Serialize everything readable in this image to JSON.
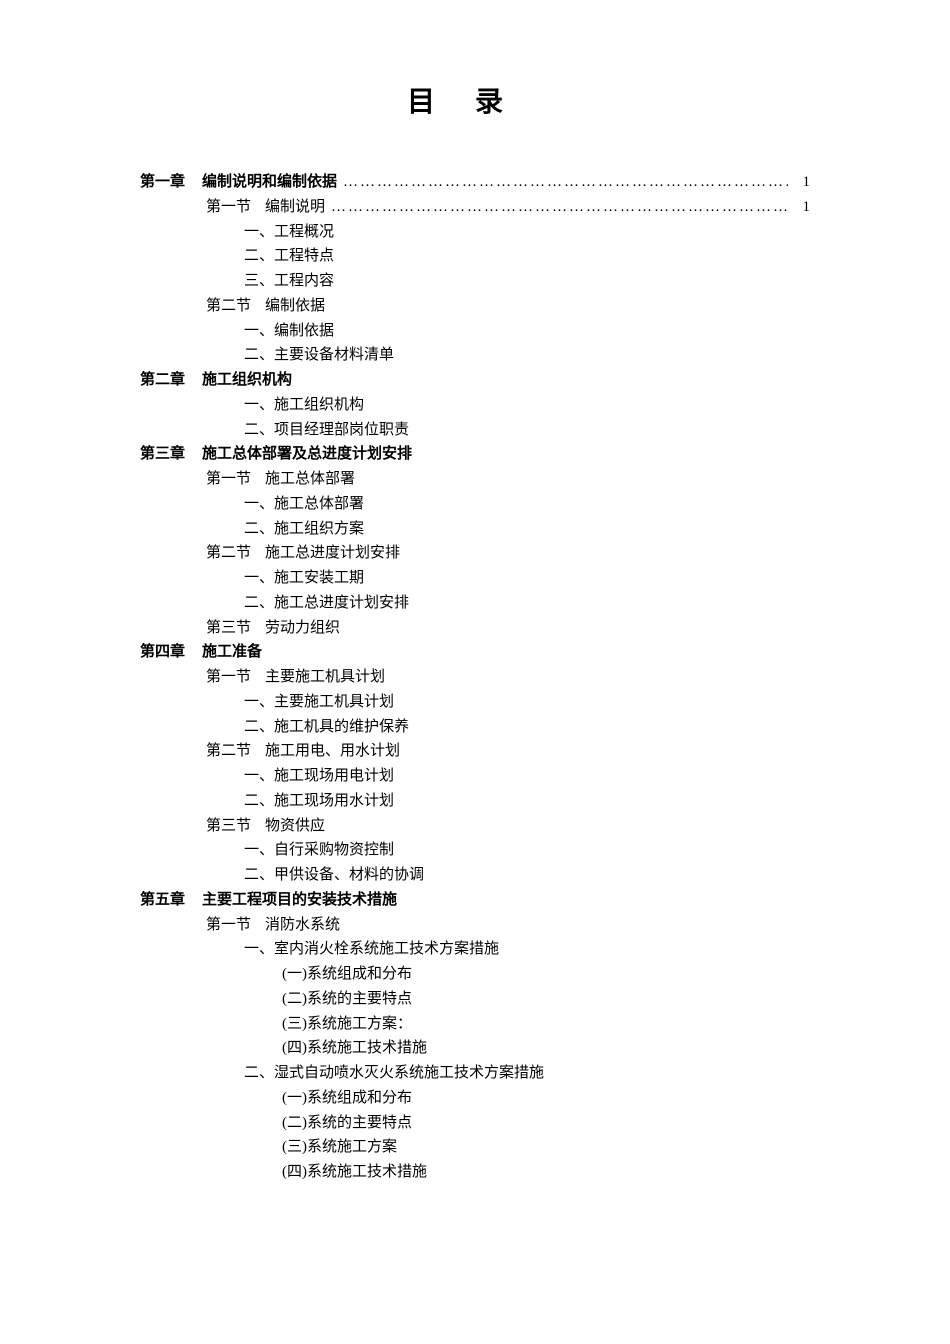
{
  "title": "目录",
  "text_color": "#000000",
  "background_color": "#ffffff",
  "font_family_heading": "SimHei",
  "font_family_body": "SimSun",
  "chapter1": {
    "label": "第一章",
    "title": "编制说明和编制依据",
    "page": "1",
    "section1": {
      "label": "第一节",
      "title": "编制说明",
      "page": "1",
      "item1": "一、工程概况",
      "item2": "二、工程特点",
      "item3": "三、工程内容"
    },
    "section2": {
      "label": "第二节",
      "title": "编制依据",
      "item1": "一、编制依据",
      "item2": "二、主要设备材料清单"
    }
  },
  "chapter2": {
    "label": "第二章",
    "title": "施工组织机构",
    "item1": "一、施工组织机构",
    "item2": "二、项目经理部岗位职责"
  },
  "chapter3": {
    "label": "第三章",
    "title": "施工总体部署及总进度计划安排",
    "section1": {
      "label": "第一节",
      "title": "施工总体部署",
      "item1": "一、施工总体部署",
      "item2": "二、施工组织方案"
    },
    "section2": {
      "label": "第二节",
      "title": "施工总进度计划安排",
      "item1": "一、施工安装工期",
      "item2": "二、施工总进度计划安排"
    },
    "section3": {
      "label": "第三节",
      "title": "劳动力组织"
    }
  },
  "chapter4": {
    "label": "第四章",
    "title": "施工准备",
    "section1": {
      "label": "第一节",
      "title": "主要施工机具计划",
      "item1": "一、主要施工机具计划",
      "item2": "二、施工机具的维护保养"
    },
    "section2": {
      "label": "第二节",
      "title": "施工用电、用水计划",
      "item1": "一、施工现场用电计划",
      "item2": "二、施工现场用水计划"
    },
    "section3": {
      "label": "第三节",
      "title": "物资供应",
      "item1": "一、自行采购物资控制",
      "item2": "二、甲供设备、材料的协调"
    }
  },
  "chapter5": {
    "label": "第五章",
    "title": "主要工程项目的安装技术措施",
    "section1": {
      "label": "第一节",
      "title": "消防水系统",
      "item1": {
        "title": "一、室内消火栓系统施工技术方案措施",
        "sub1": "(一)系统组成和分布",
        "sub2": "(二)系统的主要特点",
        "sub3": "(三)系统施工方案：",
        "sub4": "(四)系统施工技术措施"
      },
      "item2": {
        "title": "二、湿式自动喷水灭火系统施工技术方案措施",
        "sub1": "(一)系统组成和分布",
        "sub2": "(二)系统的主要特点",
        "sub3": "(三)系统施工方案",
        "sub4": "(四)系统施工技术措施"
      }
    }
  }
}
